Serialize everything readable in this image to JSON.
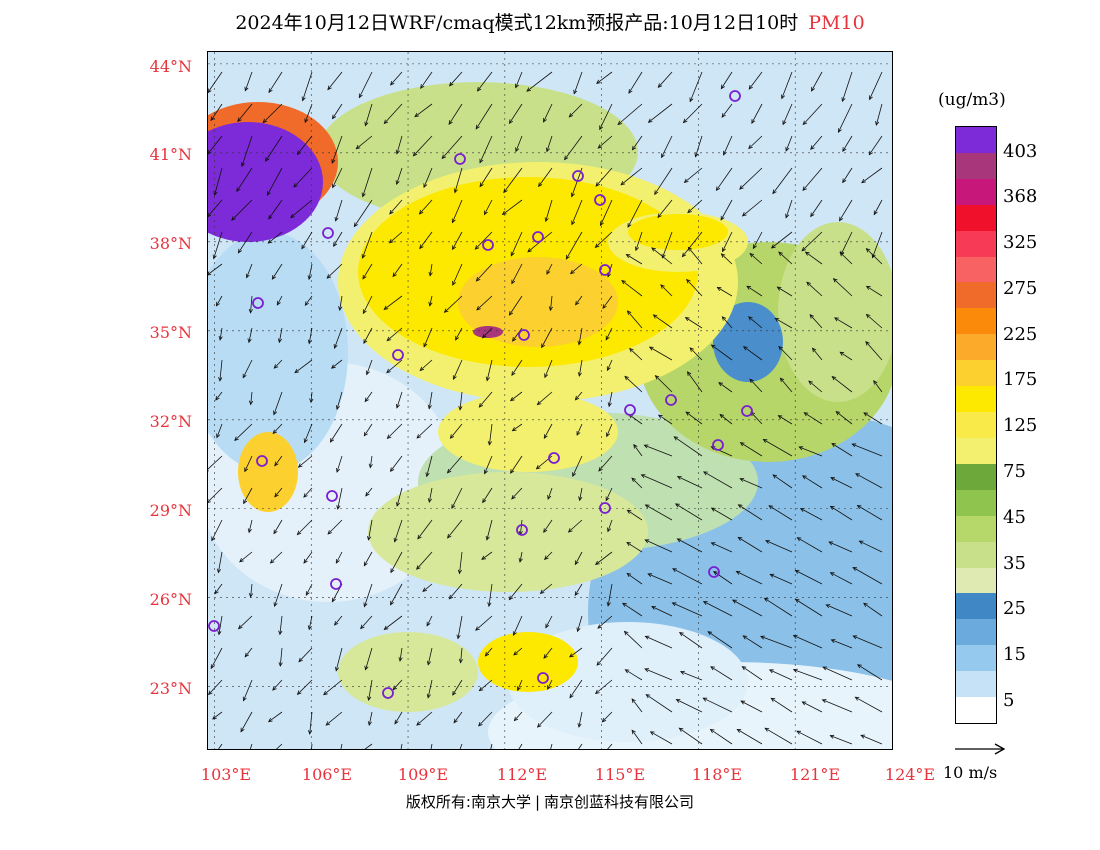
{
  "title": "2024年10月12日WRF/cmaq模式12km预报产品:10月12日10时",
  "pollutant": "PM10",
  "map": {
    "lat_labels": [
      "44°N",
      "41°N",
      "38°N",
      "35°N",
      "32°N",
      "29°N",
      "26°N",
      "23°N"
    ],
    "lon_labels": [
      "103°E",
      "106°E",
      "109°E",
      "112°E",
      "115°E",
      "118°E",
      "121°E",
      "124°E"
    ],
    "lon_range_deg": [
      102.8,
      124.0
    ],
    "lat_range_deg": [
      20.9,
      44.4
    ],
    "station_marker_color": "#7a1fd0",
    "wind_arrow_color": "#111111"
  },
  "colorbar": {
    "unit": "(ug/m3)",
    "levels": [
      "403",
      "368",
      "325",
      "275",
      "225",
      "175",
      "125",
      "75",
      "45",
      "35",
      "25",
      "15",
      "5"
    ],
    "colors": [
      "#7d2bd8",
      "#a8367a",
      "#c8177a",
      "#f0102b",
      "#f73a56",
      "#f96262",
      "#f06a2a",
      "#fb8a0a",
      "#fcaa2a",
      "#fcd02e",
      "#fde800",
      "#f9ea4a",
      "#f2f06e",
      "#6ca83a",
      "#8fc44e",
      "#b6d86a",
      "#c9e08a",
      "#dfeab2",
      "#3f88c5",
      "#6baadc",
      "#96c9ee",
      "#c6e2f6",
      "#ffffff"
    ]
  },
  "wind_reference": {
    "label": "10  m/s"
  },
  "footer": {
    "left": "版权所有:南京大学",
    "right": "南京创蓝科技有限公司"
  }
}
